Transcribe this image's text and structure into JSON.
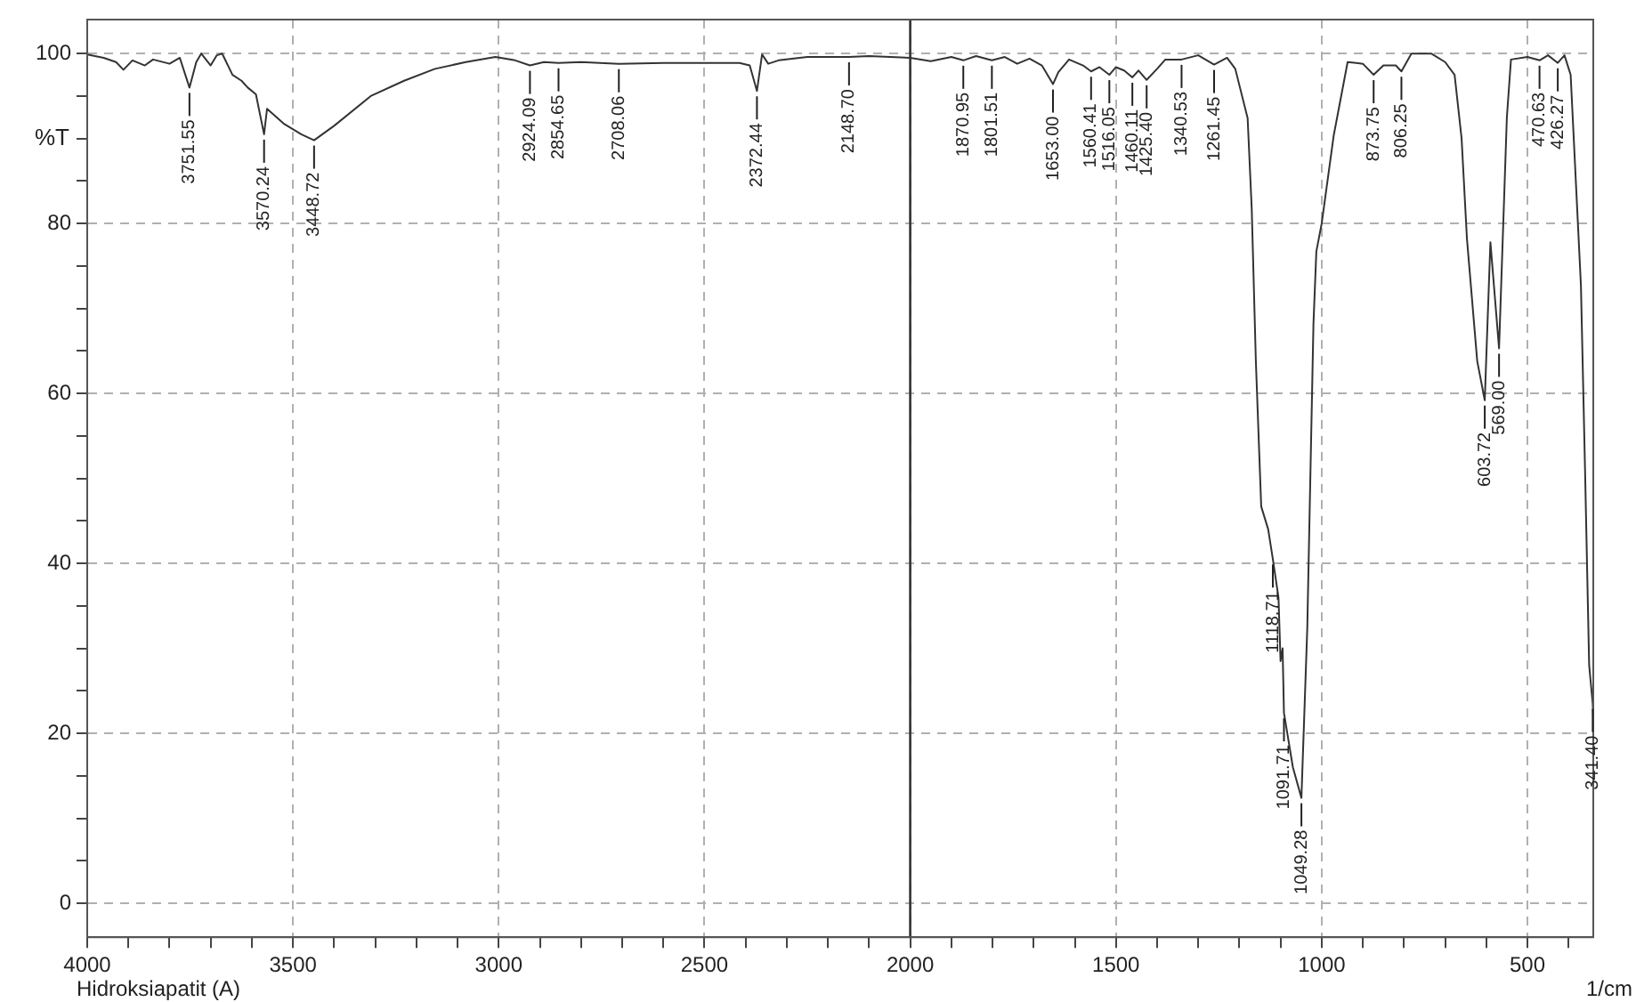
{
  "chart_data": {
    "type": "line",
    "xlabel": "1/cm",
    "ylabel": "%T",
    "x": [
      4000,
      3960,
      3930,
      3912,
      3890,
      3860,
      3840,
      3800,
      3775,
      3751.55,
      3735,
      3723,
      3700,
      3685,
      3672,
      3647,
      3625,
      3610,
      3590,
      3570.24,
      3563,
      3521,
      3480,
      3448.72,
      3400,
      3311,
      3230,
      3155,
      3080,
      3008,
      2960,
      2924.09,
      2890,
      2854.65,
      2800,
      2708.06,
      2600,
      2500,
      2415,
      2390,
      2372.44,
      2360,
      2345,
      2320,
      2250,
      2148.7,
      2100,
      2000,
      1950,
      1900,
      1870.95,
      1840,
      1801.51,
      1770,
      1740,
      1710,
      1680,
      1653,
      1640,
      1614,
      1580,
      1560.41,
      1540,
      1516.05,
      1500,
      1480,
      1460.11,
      1445,
      1425.4,
      1400,
      1380,
      1340.53,
      1300,
      1261.45,
      1230,
      1210,
      1180,
      1170,
      1160,
      1147,
      1130,
      1118.71,
      1105,
      1100,
      1095,
      1091.71,
      1070,
      1049.28,
      1035,
      1020,
      1013,
      1000,
      971,
      937,
      900,
      873.75,
      850,
      820,
      806.25,
      782,
      734,
      700,
      677,
      660,
      647,
      622,
      603.72,
      590,
      569,
      550,
      540,
      500,
      470.63,
      450,
      426.27,
      410,
      395,
      370,
      360,
      350,
      341.4,
      340
    ],
    "series": [
      {
        "color": "#333333",
        "values": [
          99.9,
          99.5,
          99.0,
          98.1,
          99.2,
          98.6,
          99.3,
          98.8,
          99.5,
          96.0,
          99.0,
          100,
          98.6,
          99.8,
          100,
          97.5,
          96.8,
          96.0,
          95.2,
          90.5,
          93.5,
          91.7,
          90.5,
          89.8,
          91.5,
          95,
          96.8,
          98.2,
          99.0,
          99.6,
          99.2,
          98.6,
          99.0,
          98.9,
          99.0,
          98.8,
          98.9,
          98.9,
          98.9,
          98.6,
          95.6,
          99.9,
          98.8,
          99.2,
          99.6,
          99.6,
          99.7,
          99.5,
          99.1,
          99.6,
          99.2,
          99.7,
          99.2,
          99.6,
          98.8,
          99.4,
          98.6,
          96.4,
          97.8,
          99.3,
          98.6,
          97.9,
          98.4,
          97.5,
          98.4,
          98.0,
          97.2,
          98.0,
          96.9,
          98.2,
          99.3,
          99.3,
          99.8,
          98.7,
          99.5,
          98.2,
          92.4,
          81.7,
          63.8,
          46.7,
          44,
          40.5,
          36,
          28.5,
          30,
          22.4,
          16,
          12.4,
          32.4,
          68.2,
          76.7,
          80,
          90.3,
          99,
          98.8,
          97.5,
          98.6,
          98.6,
          97.9,
          100,
          100,
          99,
          97.5,
          90,
          78.2,
          63.8,
          59.2,
          77.8,
          65.3,
          92.5,
          99.3,
          99.6,
          99.2,
          99.8,
          98.9,
          99.8,
          97.5,
          72.7,
          51,
          28,
          23.5,
          22
        ]
      }
    ],
    "xlim": [
      4000,
      340
    ],
    "ylim": [
      -4,
      104
    ],
    "xticks": [
      4000,
      {
        "value": 3900,
        "label": null
      },
      {
        "value": 3800,
        "label": null
      },
      {
        "value": 3700,
        "label": null
      },
      {
        "value": 3600,
        "label": null
      },
      3500,
      {
        "value": 3400,
        "label": null
      },
      {
        "value": 3300,
        "label": null
      },
      {
        "value": 3200,
        "label": null
      },
      {
        "value": 3100,
        "label": null
      },
      3000,
      {
        "value": 2900,
        "label": null
      },
      {
        "value": 2800,
        "label": null
      },
      {
        "value": 2700,
        "label": null
      },
      {
        "value": 2600,
        "label": null
      },
      2500,
      {
        "value": 2400,
        "label": null
      },
      {
        "value": 2300,
        "label": null
      },
      {
        "value": 2200,
        "label": null
      },
      {
        "value": 2100,
        "label": null
      },
      2000,
      {
        "value": 1900,
        "label": null
      },
      {
        "value": 1800,
        "label": null
      },
      {
        "value": 1700,
        "label": null
      },
      {
        "value": 1600,
        "label": null
      },
      1500,
      {
        "value": 1400,
        "label": null
      },
      {
        "value": 1300,
        "label": null
      },
      {
        "value": 1200,
        "label": null
      },
      {
        "value": 1100,
        "label": null
      },
      1000,
      {
        "value": 900,
        "label": null
      },
      {
        "value": 800,
        "label": null
      },
      {
        "value": 700,
        "label": null
      },
      {
        "value": 600,
        "label": null
      },
      500,
      {
        "value": 400,
        "label": null
      }
    ],
    "yticks": [
      0,
      {
        "value": 5,
        "label": null
      },
      {
        "value": 10,
        "label": null
      },
      {
        "value": 15,
        "label": null
      },
      20,
      {
        "value": 25,
        "label": null
      },
      {
        "value": 30,
        "label": null
      },
      {
        "value": 35,
        "label": null
      },
      40,
      {
        "value": 45,
        "label": null
      },
      {
        "value": 50,
        "label": null
      },
      {
        "value": 55,
        "label": null
      },
      60,
      {
        "value": 65,
        "label": null
      },
      {
        "value": 70,
        "label": null
      },
      {
        "value": 75,
        "label": null
      },
      80,
      {
        "value": 85,
        "label": null
      },
      {
        "value": 90,
        "label": null
      },
      {
        "value": 95,
        "label": null
      },
      100
    ],
    "grid": true,
    "legend": false,
    "marker": "none",
    "line_style": "solid",
    "ref_lines": [
      {
        "axis": "x",
        "value": 2000,
        "color": "#333333"
      }
    ],
    "annotations": [
      "Hidroksiapatit (A)",
      {
        "text": "3751.55",
        "x": 3751.55,
        "y": 96.0
      },
      {
        "text": "3570.24",
        "x": 3570.24,
        "y": 90.5
      },
      {
        "text": "3448.72",
        "x": 3448.72,
        "y": 89.8
      },
      {
        "text": "2924.09",
        "x": 2924.09,
        "y": 98.6
      },
      {
        "text": "2854.65",
        "x": 2854.65,
        "y": 98.9
      },
      {
        "text": "2708.06",
        "x": 2708.06,
        "y": 98.8
      },
      {
        "text": "2372.44",
        "x": 2372.44,
        "y": 95.6
      },
      {
        "text": "2148.70",
        "x": 2148.7,
        "y": 99.6
      },
      {
        "text": "1870.95",
        "x": 1870.95,
        "y": 99.2
      },
      {
        "text": "1801.51",
        "x": 1801.51,
        "y": 99.2
      },
      {
        "text": "1653.00",
        "x": 1653,
        "y": 96.4
      },
      {
        "text": "1560.41",
        "x": 1560.41,
        "y": 97.9
      },
      {
        "text": "1516.05",
        "x": 1516.05,
        "y": 97.5
      },
      {
        "text": "1460.11",
        "x": 1460.11,
        "y": 97.2
      },
      {
        "text": "1425.40",
        "x": 1425.4,
        "y": 96.9
      },
      {
        "text": "1340.53",
        "x": 1340.53,
        "y": 99.3
      },
      {
        "text": "1261.45",
        "x": 1261.45,
        "y": 98.7
      },
      {
        "text": "1118.71",
        "x": 1118.71,
        "y": 40.5
      },
      {
        "text": "1091.71",
        "x": 1091.71,
        "y": 22.4
      },
      {
        "text": "1049.28",
        "x": 1049.28,
        "y": 12.4
      },
      {
        "text": "873.75",
        "x": 873.75,
        "y": 97.5
      },
      {
        "text": "806.25",
        "x": 806.25,
        "y": 97.9
      },
      {
        "text": "603.72",
        "x": 603.72,
        "y": 59.2
      },
      {
        "text": "569.00",
        "x": 569,
        "y": 65.3
      },
      {
        "text": "470.63",
        "x": 470.63,
        "y": 99.2
      },
      {
        "text": "426.27",
        "x": 426.27,
        "y": 98.9
      },
      {
        "text": "341.40",
        "x": 341.4,
        "y": 23.5
      }
    ]
  }
}
